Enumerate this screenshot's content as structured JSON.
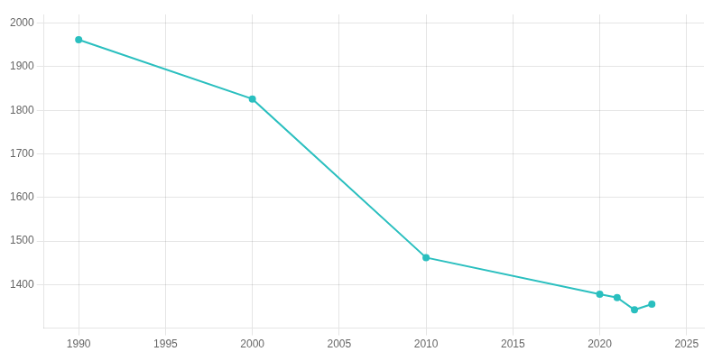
{
  "chart_data": {
    "type": "line",
    "x": [
      1990,
      2000,
      2010,
      2020,
      2021,
      2022,
      2023
    ],
    "values": [
      1962,
      1826,
      1462,
      1378,
      1370,
      1342,
      1355
    ],
    "color": "#2ABFBF",
    "marker": "circle",
    "xlim": [
      1988,
      2026
    ],
    "xticks": [
      1990,
      1995,
      2000,
      2005,
      2010,
      2015,
      2020,
      2025
    ],
    "ylim": [
      1300,
      2020
    ],
    "yticks": [
      1400,
      1500,
      1600,
      1700,
      1800,
      1900,
      2000
    ],
    "grid": true
  }
}
